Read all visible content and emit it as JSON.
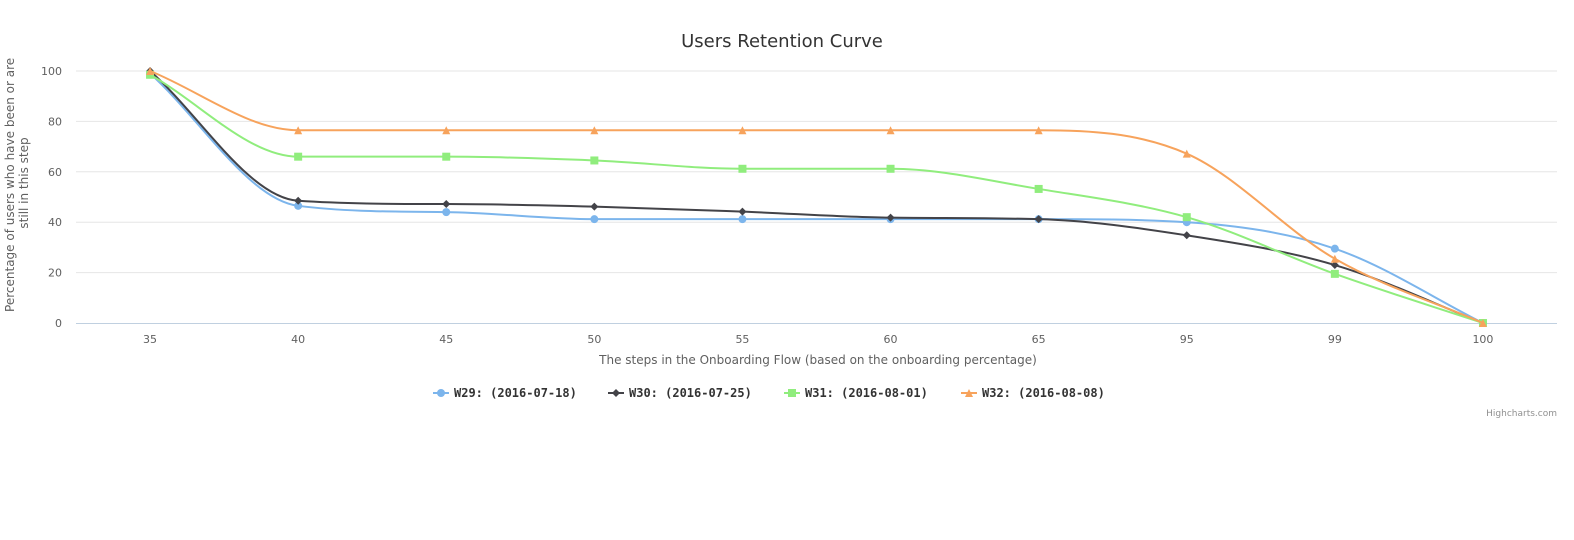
{
  "chart_data": {
    "type": "line",
    "title": "Users Retention Curve",
    "xlabel": "The steps in the Onboarding Flow (based on the onboarding percentage)",
    "ylabel_lines": [
      "Percentage of users who have been or are",
      "still in this step"
    ],
    "categories": [
      "35",
      "40",
      "45",
      "50",
      "55",
      "60",
      "65",
      "95",
      "99",
      "100"
    ],
    "ylim": [
      0,
      100
    ],
    "yticks": [
      0,
      20,
      40,
      60,
      80,
      100
    ],
    "grid": true,
    "legend_position": "bottom-center",
    "credits": "Highcharts.com",
    "series": [
      {
        "name": "W29: (2016-07-18)",
        "color": "#7cb5ec",
        "marker": "circle",
        "values": [
          99,
          46.5,
          44,
          41.2,
          41.2,
          41.2,
          41.2,
          40,
          29.5,
          0
        ]
      },
      {
        "name": "W30: (2016-07-25)",
        "color": "#434348",
        "marker": "diamond",
        "values": [
          100,
          48.5,
          47.2,
          46.2,
          44.2,
          41.8,
          41.2,
          34.8,
          23,
          0
        ]
      },
      {
        "name": "W31: (2016-08-01)",
        "color": "#90ed7d",
        "marker": "square",
        "values": [
          98.5,
          66,
          66,
          64.5,
          61.2,
          61.2,
          53.2,
          42,
          19.5,
          0
        ]
      },
      {
        "name": "W32: (2016-08-08)",
        "color": "#f7a35c",
        "marker": "triangle",
        "values": [
          100,
          76.5,
          76.5,
          76.5,
          76.5,
          76.5,
          76.5,
          67.2,
          25.5,
          0
        ]
      }
    ]
  }
}
